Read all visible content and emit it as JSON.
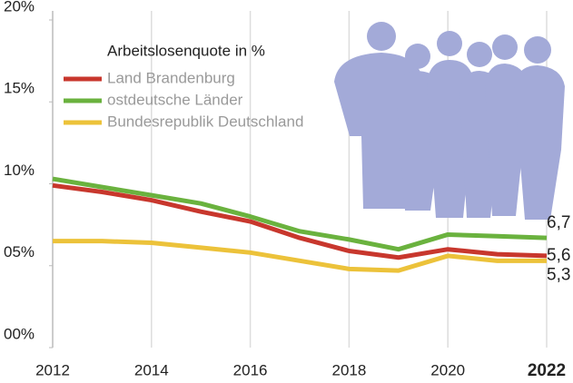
{
  "chart_data": {
    "type": "line",
    "legend_title": "Arbeitslosenquote in %",
    "x": [
      2012,
      2013,
      2014,
      2015,
      2016,
      2017,
      2018,
      2019,
      2020,
      2021,
      2022
    ],
    "series": [
      {
        "name": "Land Brandenburg",
        "color": "#c8372d",
        "values": [
          9.9,
          9.5,
          9.0,
          8.3,
          7.7,
          6.7,
          5.9,
          5.5,
          6.0,
          5.7,
          5.6
        ],
        "value_labels": [
          null,
          null,
          null,
          null,
          null,
          null,
          null,
          null,
          null,
          null,
          "5,6"
        ]
      },
      {
        "name": "ostdeutsche Länder",
        "color": "#6ab23e",
        "values": [
          10.3,
          9.8,
          9.3,
          8.8,
          8.0,
          7.1,
          6.6,
          6.0,
          6.9,
          6.8,
          6.7
        ],
        "value_labels": [
          null,
          null,
          null,
          null,
          null,
          null,
          null,
          null,
          null,
          null,
          "6,7"
        ]
      },
      {
        "name": "Bundesrepublik Deutschland",
        "color": "#ecc23a",
        "values": [
          6.5,
          6.5,
          6.4,
          6.1,
          5.8,
          5.3,
          4.8,
          4.7,
          5.6,
          5.3,
          5.3
        ],
        "value_labels": [
          null,
          null,
          null,
          null,
          null,
          null,
          null,
          null,
          null,
          null,
          "5,3"
        ]
      }
    ],
    "xlim": [
      2012,
      2022
    ],
    "xticks": [
      2012,
      2014,
      2016,
      2018,
      2020,
      2022
    ],
    "ylim": [
      0,
      20
    ],
    "yticks": [
      {
        "value": 0,
        "label": "00%"
      },
      {
        "value": 5,
        "label": "05%"
      },
      {
        "value": 10,
        "label": "10%"
      },
      {
        "value": 15,
        "label": "15%"
      },
      {
        "value": 20,
        "label": "20%"
      }
    ],
    "grid": true
  }
}
